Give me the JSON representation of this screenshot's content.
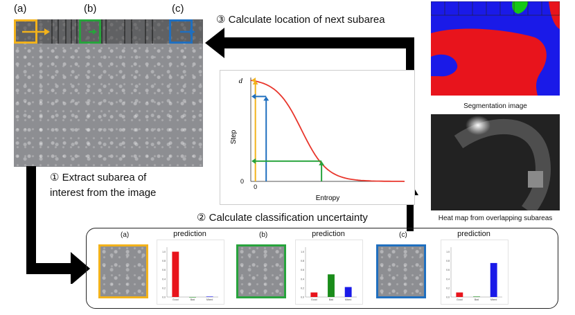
{
  "labels": {
    "a": "(a)",
    "b": "(b)",
    "c": "(c)"
  },
  "steps": {
    "s1_line1": "① Extract subarea of",
    "s1_line2": "interest from the image",
    "s2": "② Calculate classification uncertainty",
    "s3": "③ Calculate location of next subarea"
  },
  "captions": {
    "segmentation": "Segmentation image",
    "heatmap": "Heat map from overlapping subareas"
  },
  "panel": {
    "prediction_title": "prediction",
    "cards": [
      {
        "label": "(a)",
        "frame_color": "#f2b21b"
      },
      {
        "label": "(b)",
        "frame_color": "#27a33c"
      },
      {
        "label": "(c)",
        "frame_color": "#1f6fbf"
      }
    ],
    "class_names": [
      "Good",
      "Bad",
      "Mixed"
    ]
  },
  "chart_data": [
    {
      "type": "line",
      "title": "",
      "xlabel": "Entropy",
      "ylabel": "Step",
      "ytick_labels": [
        "0",
        "d"
      ],
      "xtick_labels": [
        "0"
      ],
      "curve": "decreasing sigmoid from d at entropy 0 to 0 at high entropy",
      "markers": [
        {
          "color": "#f2b21b",
          "entropy_fraction": 0.03,
          "step_fraction": 1.0
        },
        {
          "color": "#1f6fbf",
          "entropy_fraction": 0.1,
          "step_fraction": 0.84
        },
        {
          "color": "#27a33c",
          "entropy_fraction": 0.46,
          "step_fraction": 0.2
        }
      ],
      "colors": {
        "curve": "#e8352b",
        "axis": "#555555"
      }
    },
    {
      "type": "bar",
      "title": "prediction",
      "categories": [
        "Good",
        "Bad",
        "Mixed"
      ],
      "values": [
        1.0,
        0.0,
        0.01
      ],
      "colors": [
        "#e8141c",
        "#1a8c1a",
        "#1a1ae8"
      ],
      "ylim": [
        0,
        1.1
      ],
      "yticks": [
        "0.0",
        "0.2",
        "0.4",
        "0.6",
        "0.8",
        "1.0"
      ]
    },
    {
      "type": "bar",
      "title": "prediction",
      "categories": [
        "Good",
        "Bad",
        "Mixed"
      ],
      "values": [
        0.1,
        0.5,
        0.22
      ],
      "colors": [
        "#e8141c",
        "#1a8c1a",
        "#1a1ae8"
      ],
      "ylim": [
        0,
        1.1
      ],
      "yticks": [
        "0.0",
        "0.2",
        "0.4",
        "0.6",
        "0.8",
        "1.0"
      ]
    },
    {
      "type": "bar",
      "title": "prediction",
      "categories": [
        "Good",
        "Bad",
        "Mixed"
      ],
      "values": [
        0.1,
        0.01,
        0.75
      ],
      "colors": [
        "#e8141c",
        "#1a8c1a",
        "#1a1ae8"
      ],
      "ylim": [
        0,
        1.1
      ],
      "yticks": [
        "0.0",
        "0.2",
        "0.4",
        "0.6",
        "0.8",
        "1.0"
      ]
    }
  ]
}
